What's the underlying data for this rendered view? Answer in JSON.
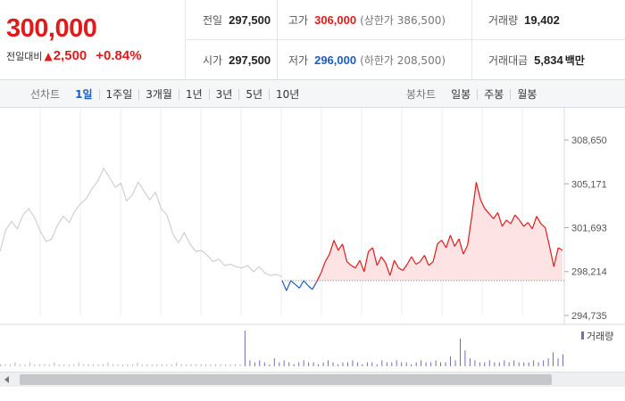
{
  "quote": {
    "price": "300,000",
    "change_label": "전일대비",
    "change_arrow": "▲",
    "change_amount": "2,500",
    "change_percent": "+0.84%",
    "prev_close": {
      "label": "전일",
      "value": "297,500"
    },
    "high": {
      "label": "고가",
      "value": "306,000",
      "limit": "(상한가 386,500)"
    },
    "volume": {
      "label": "거래량",
      "value": "19,402"
    },
    "open": {
      "label": "시가",
      "value": "297,500"
    },
    "low": {
      "label": "저가",
      "value": "296,000",
      "limit": "(하한가 208,500)"
    },
    "trade_value": {
      "label": "거래대금",
      "value": "5,834",
      "unit": "백만"
    }
  },
  "tabs": {
    "line_label": "선차트",
    "line_items": [
      "1일",
      "1주일",
      "3개월",
      "1년",
      "3년",
      "5년",
      "10년"
    ],
    "line_active": 0,
    "candle_label": "봉차트",
    "candle_items": [
      "일봉",
      "주봉",
      "월봉"
    ]
  },
  "chart_data": {
    "type": "line",
    "ylim": [
      294735,
      308650
    ],
    "yticks": [
      "308,650",
      "305,171",
      "301,693",
      "298,214",
      "294,735"
    ],
    "reference_line": 297500,
    "previous_session": [
      299800,
      301500,
      302200,
      301600,
      302700,
      303200,
      302500,
      301400,
      300600,
      300800,
      301900,
      302600,
      302100,
      303000,
      303600,
      304000,
      304800,
      305400,
      306400,
      305700,
      304900,
      305200,
      303800,
      304300,
      305300,
      304600,
      303900,
      304500,
      303200,
      302700,
      301200,
      300500,
      301300,
      300400,
      299800,
      299900,
      299500,
      299000,
      299200,
      298700,
      298800,
      298600,
      298500,
      298700,
      298200,
      298600,
      298100,
      297900,
      298000,
      297800
    ],
    "today": [
      297500,
      296700,
      297500,
      297200,
      296900,
      297500,
      297100,
      296800,
      297400,
      298100,
      299000,
      299600,
      300700,
      299900,
      300400,
      299000,
      298700,
      298500,
      299100,
      298200,
      299800,
      300100,
      298700,
      299400,
      298900,
      297900,
      299100,
      298500,
      298300,
      298800,
      299400,
      298800,
      299000,
      299500,
      298700,
      299000,
      300400,
      300700,
      300100,
      301100,
      300200,
      300800,
      299600,
      300300,
      302700,
      305300,
      303900,
      303200,
      302800,
      302400,
      302900,
      301800,
      302300,
      302000,
      302700,
      302300,
      301800,
      302100,
      301600,
      302600,
      302000,
      301700,
      300200,
      298600,
      300100,
      299900
    ],
    "volume_label": "거래량",
    "volume": [
      1,
      1,
      1,
      2,
      1,
      1,
      2,
      1,
      1,
      1,
      1,
      2,
      1,
      1,
      1,
      1,
      2,
      1,
      1,
      1,
      1,
      1,
      2,
      1,
      1,
      1,
      1,
      1,
      2,
      1,
      1,
      1,
      1,
      1,
      1,
      1,
      2,
      1,
      1,
      1,
      1,
      1,
      1,
      1,
      1,
      1,
      1,
      1,
      1,
      1,
      18,
      3,
      2,
      3,
      2,
      1,
      4,
      2,
      3,
      2,
      1,
      2,
      3,
      2,
      2,
      1,
      2,
      3,
      2,
      1,
      2,
      2,
      3,
      2,
      1,
      2,
      2,
      1,
      3,
      2,
      2,
      3,
      2,
      2,
      1,
      2,
      3,
      2,
      2,
      3,
      2,
      2,
      5,
      3,
      14,
      8,
      4,
      3,
      2,
      2,
      3,
      2,
      2,
      3,
      2,
      3,
      2,
      2,
      2,
      3,
      2,
      3,
      4,
      7,
      4,
      6
    ]
  },
  "colors": {
    "up": "#e01b1b",
    "down": "#1a5cc8",
    "prev_line": "#c8c8c8",
    "fill_up": "#fde3e3",
    "volume_bar": "#7a6bb0"
  }
}
